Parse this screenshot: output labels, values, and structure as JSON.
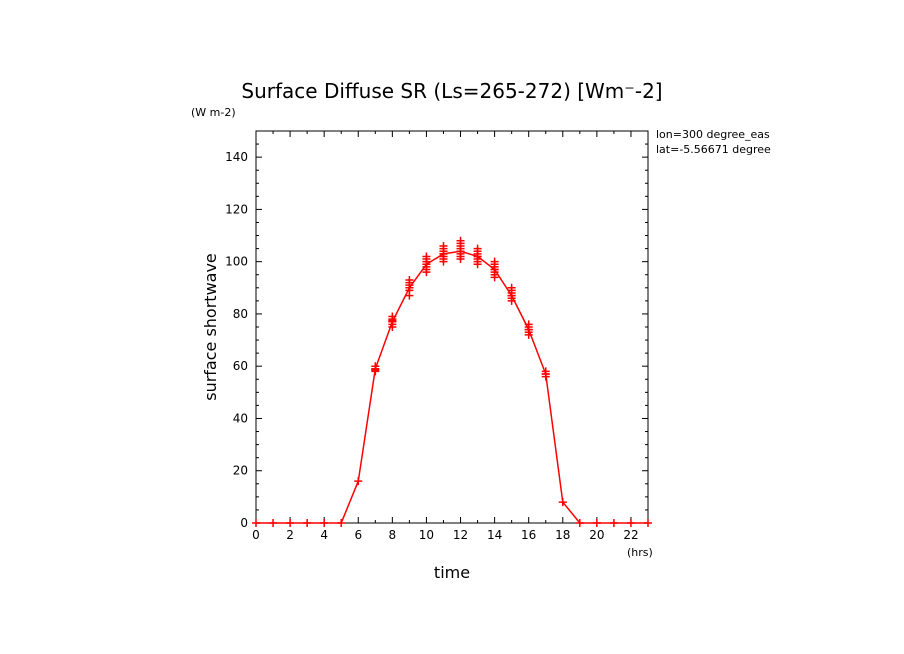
{
  "chart_data": {
    "type": "line",
    "title": "Surface Diffuse SR (Ls=265-272) [Wm⁻-2]",
    "y_units": "(W m-2)",
    "x_units": "(hrs)",
    "xlabel": "time",
    "ylabel": "surface shortwave",
    "annotations": [
      "lon=300 degree_eas",
      "lat=-5.56671 degree"
    ],
    "xlim": [
      0,
      23
    ],
    "ylim": [
      0,
      150
    ],
    "x_ticks": [
      0,
      2,
      4,
      6,
      8,
      10,
      12,
      14,
      16,
      18,
      20,
      22
    ],
    "y_ticks": [
      0,
      20,
      40,
      60,
      80,
      100,
      120,
      140
    ],
    "grid": false,
    "color": "#ff0000",
    "series": [
      {
        "x": [
          0,
          1,
          2,
          3,
          4,
          5,
          6,
          7,
          8,
          9,
          10,
          11,
          12,
          13,
          14,
          15,
          16,
          17,
          18,
          19,
          20,
          21,
          22,
          23
        ],
        "values": [
          0,
          0,
          0,
          0,
          0,
          0,
          16,
          59,
          77,
          90,
          99,
          103,
          104,
          102,
          97,
          87,
          74,
          57,
          8,
          0,
          0,
          0,
          0,
          0
        ]
      }
    ],
    "scatter_points": [
      [
        7,
        58
      ],
      [
        7,
        59
      ],
      [
        7,
        60
      ],
      [
        7,
        58.5
      ],
      [
        8,
        75
      ],
      [
        8,
        76
      ],
      [
        8,
        77
      ],
      [
        8,
        78
      ],
      [
        8,
        79
      ],
      [
        8,
        77.5
      ],
      [
        9,
        87
      ],
      [
        9,
        89
      ],
      [
        9,
        90
      ],
      [
        9,
        91
      ],
      [
        9,
        92
      ],
      [
        9,
        93
      ],
      [
        10,
        96
      ],
      [
        10,
        97
      ],
      [
        10,
        98
      ],
      [
        10,
        99
      ],
      [
        10,
        100
      ],
      [
        10,
        101
      ],
      [
        10,
        102
      ],
      [
        11,
        100
      ],
      [
        11,
        101
      ],
      [
        11,
        102
      ],
      [
        11,
        103
      ],
      [
        11,
        104
      ],
      [
        11,
        105
      ],
      [
        11,
        106
      ],
      [
        12,
        101
      ],
      [
        12,
        102
      ],
      [
        12,
        103
      ],
      [
        12,
        104
      ],
      [
        12,
        105
      ],
      [
        12,
        106
      ],
      [
        12,
        107
      ],
      [
        12,
        108
      ],
      [
        13,
        99
      ],
      [
        13,
        100
      ],
      [
        13,
        101
      ],
      [
        13,
        102
      ],
      [
        13,
        103
      ],
      [
        13,
        104
      ],
      [
        13,
        105
      ],
      [
        14,
        94
      ],
      [
        14,
        95
      ],
      [
        14,
        96
      ],
      [
        14,
        97
      ],
      [
        14,
        98
      ],
      [
        14,
        99
      ],
      [
        14,
        100
      ],
      [
        15,
        85
      ],
      [
        15,
        86
      ],
      [
        15,
        87
      ],
      [
        15,
        88
      ],
      [
        15,
        89
      ],
      [
        15,
        90
      ],
      [
        16,
        72
      ],
      [
        16,
        73
      ],
      [
        16,
        74
      ],
      [
        16,
        75
      ],
      [
        16,
        76
      ],
      [
        17,
        56
      ],
      [
        17,
        57
      ],
      [
        17,
        58
      ]
    ]
  }
}
